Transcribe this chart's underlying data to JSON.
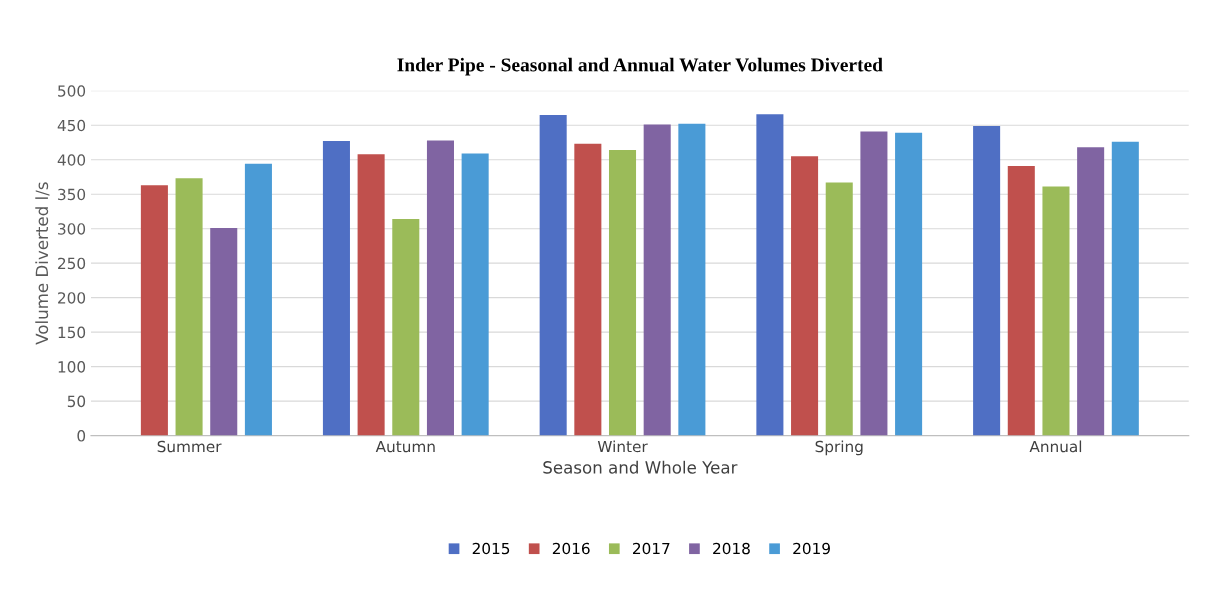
{
  "chart_data": {
    "type": "bar",
    "title": "Inder Pipe - Seasonal and Annual Water Volumes Diverted",
    "xlabel": "Season and Whole Year",
    "ylabel": "Volume Diverted l/s",
    "categories": [
      "Summer",
      "Autumn",
      "Winter",
      "Spring",
      "Annual"
    ],
    "series": [
      {
        "name": "2015",
        "color": "#4f6fc4",
        "values": [
          null,
          427,
          465,
          466,
          449
        ]
      },
      {
        "name": "2016",
        "color": "#c0504d",
        "values": [
          363,
          408,
          423,
          405,
          391
        ]
      },
      {
        "name": "2017",
        "color": "#9bbb59",
        "values": [
          373,
          314,
          414,
          367,
          361
        ]
      },
      {
        "name": "2018",
        "color": "#8064a2",
        "values": [
          301,
          428,
          451,
          441,
          418
        ]
      },
      {
        "name": "2019",
        "color": "#4a9bd6",
        "values": [
          394,
          409,
          452,
          439,
          426
        ]
      }
    ],
    "ylim": [
      0,
      500
    ],
    "yticks": [
      0,
      50,
      100,
      150,
      200,
      250,
      300,
      350,
      400,
      450,
      500
    ],
    "grid": "y",
    "legend": "bottom"
  }
}
